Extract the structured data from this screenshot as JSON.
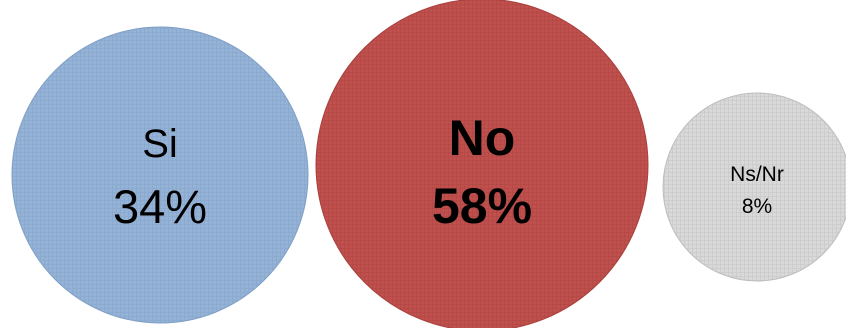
{
  "chart_data": {
    "type": "bubble",
    "title": "",
    "categories": [
      "Si",
      "No",
      "Ns/Nr"
    ],
    "values": [
      34,
      58,
      8
    ],
    "unit": "%",
    "value_labels": [
      "34%",
      "58%",
      "8%"
    ],
    "colors": [
      "#95b3d7",
      "#c0504d",
      "#d9d9d9"
    ],
    "edge_colors": [
      "#7f9fc6",
      "#a8403d",
      "#bdbdbd"
    ],
    "emphasized": "No",
    "pattern": "small-grid",
    "legend": "none",
    "grid": false
  }
}
